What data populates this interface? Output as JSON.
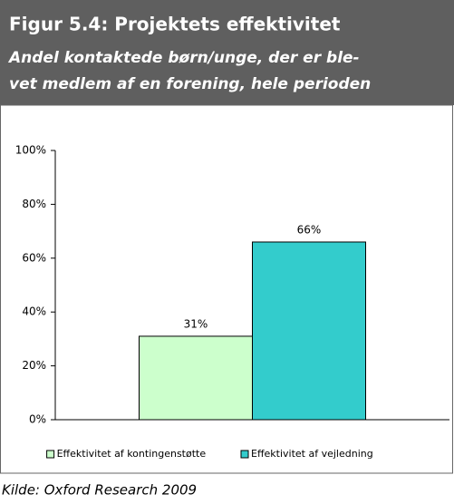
{
  "chart_data": {
    "type": "bar",
    "title": "Figur 5.4: Projektets effektivitet",
    "subtitle": [
      "Andel kontaktede børn/unge, der er ble-",
      "vet medlem af en forening, hele perioden"
    ],
    "categories": [
      null
    ],
    "series": [
      {
        "name": "Effektivitet af kontingenstøtte",
        "color": "#ccffcc",
        "values": [
          31
        ],
        "value_labels": [
          "31%"
        ]
      },
      {
        "name": "Effektivitet af vejledning",
        "color": "#33cccc",
        "values": [
          66
        ],
        "value_labels": [
          "66%"
        ]
      }
    ],
    "ylim": [
      0,
      100
    ],
    "yticks": [
      {
        "value": 0,
        "label": "0%"
      },
      {
        "value": 20,
        "label": "20%"
      },
      {
        "value": 40,
        "label": "40%"
      },
      {
        "value": 60,
        "label": "60%"
      },
      {
        "value": 80,
        "label": "80%"
      },
      {
        "value": 100,
        "label": "100%"
      }
    ],
    "grid": false,
    "legend": "bottom",
    "source": "Kilde: Oxford Research 2009"
  }
}
